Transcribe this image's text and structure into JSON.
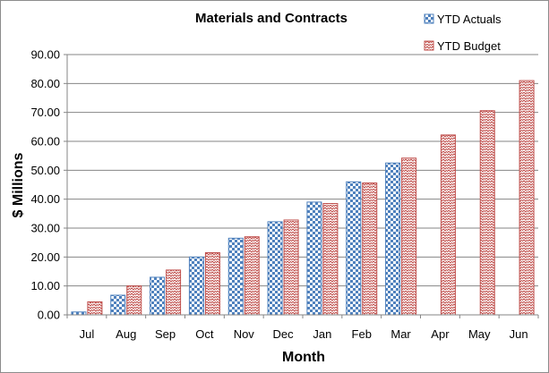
{
  "chart_data": {
    "type": "bar",
    "title": "Materials and Contracts",
    "xlabel": "Month",
    "ylabel": "$ Millions",
    "ylim": [
      0,
      90
    ],
    "yticks": [
      "0.00",
      "10.00",
      "20.00",
      "30.00",
      "40.00",
      "50.00",
      "60.00",
      "70.00",
      "80.00",
      "90.00"
    ],
    "grid": "horizontal",
    "legend": "top-right",
    "categories": [
      "Jul",
      "Aug",
      "Sep",
      "Oct",
      "Nov",
      "Dec",
      "Jan",
      "Feb",
      "Mar",
      "Apr",
      "May",
      "Jun"
    ],
    "series": [
      {
        "name": "YTD Actuals",
        "color": "#4f81bd",
        "pattern": "checkerboard",
        "values": [
          1.0,
          6.8,
          13.0,
          20.0,
          26.5,
          32.2,
          39.0,
          46.0,
          52.5,
          null,
          null,
          null
        ]
      },
      {
        "name": "YTD Budget",
        "color": "#c0504d",
        "pattern": "zigzag",
        "values": [
          4.5,
          10.0,
          15.5,
          21.5,
          27.0,
          32.8,
          38.5,
          45.6,
          54.2,
          62.2,
          70.6,
          81.0
        ]
      }
    ]
  }
}
